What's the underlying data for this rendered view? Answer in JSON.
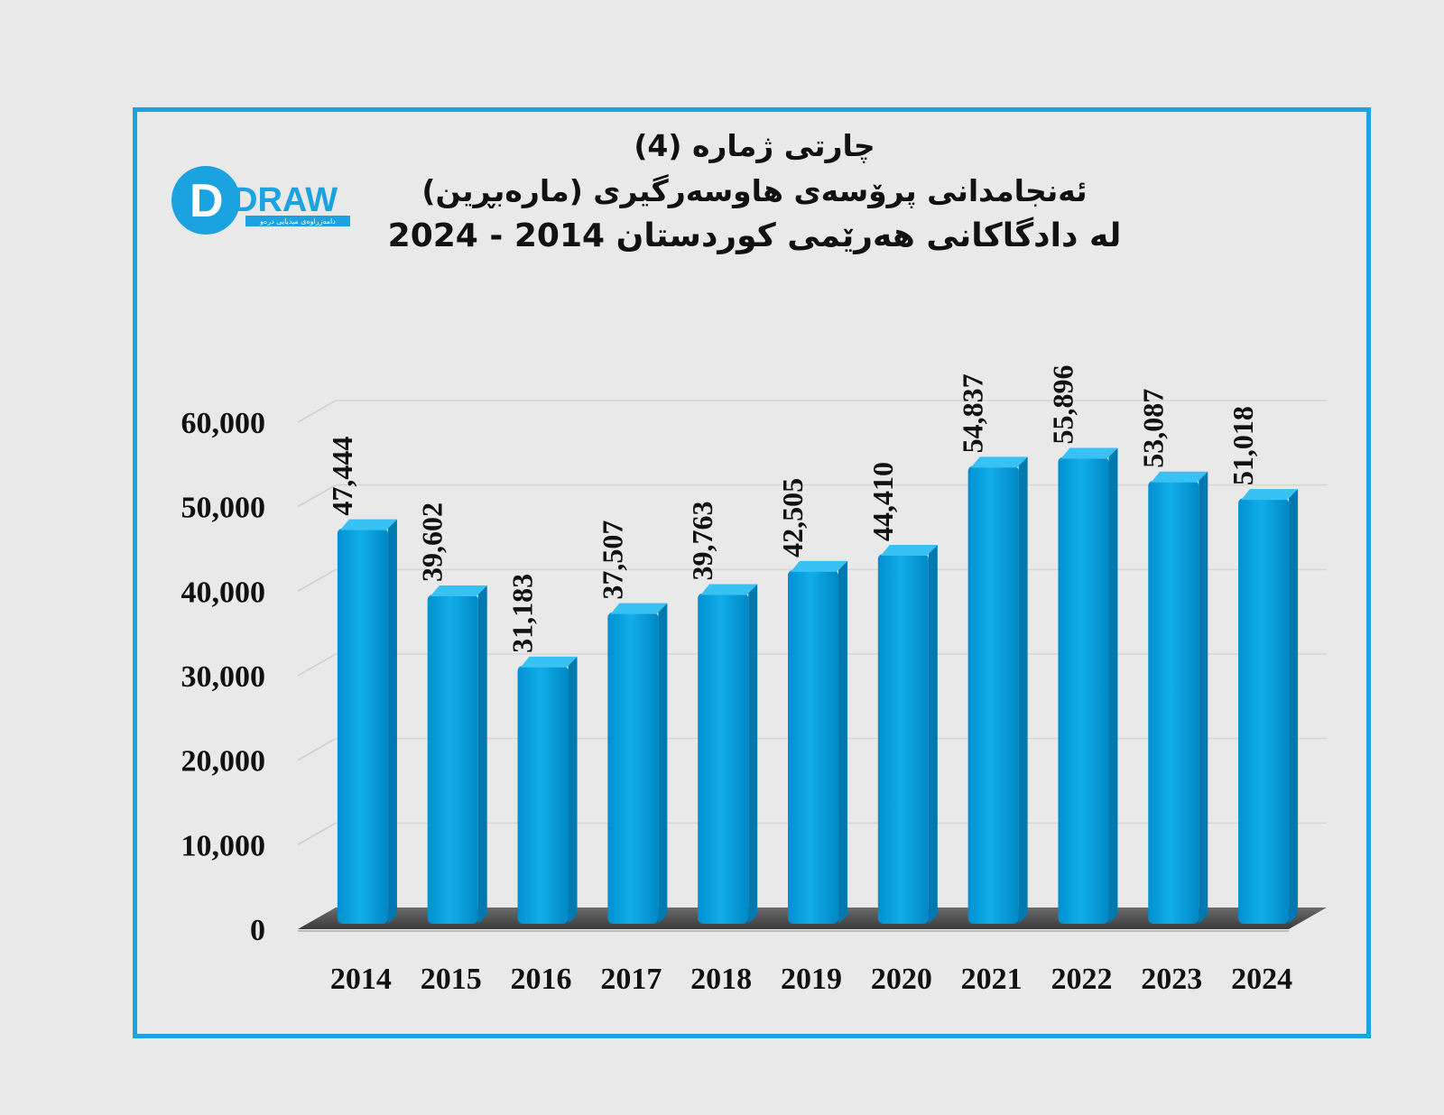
{
  "title": {
    "line1": "چارتی ژمارە (4)",
    "line2": "ئەنجامدانی پرۆسەی هاوسەرگیری (مارەبڕین)",
    "line3": "لە دادگاکانی هەرێمی کوردستان 2014 - 2024"
  },
  "logo": {
    "text": "DRAW",
    "tagline": "دامەزراوەی میدیایی درەو",
    "color": "#1aa3e0"
  },
  "colors": {
    "bar": "#00a3e4",
    "bar_top": "#38c2f3",
    "bar_side": "#0078b0",
    "frame": "#1aa3e0"
  },
  "chart_data": {
    "type": "bar",
    "categories": [
      "2014",
      "2015",
      "2016",
      "2017",
      "2018",
      "2019",
      "2020",
      "2021",
      "2022",
      "2023",
      "2024"
    ],
    "values": [
      47444,
      39602,
      31183,
      37507,
      39763,
      42505,
      44410,
      54837,
      55896,
      53087,
      51018
    ],
    "data_labels": [
      "47,444",
      "39,602",
      "31,183",
      "37,507",
      "39,763",
      "42,505",
      "44,410",
      "54,837",
      "55,896",
      "53,087",
      "51,018"
    ],
    "y_ticks": [
      "0",
      "10,000",
      "20,000",
      "30,000",
      "40,000",
      "50,000",
      "60,000"
    ],
    "ylim": [
      0,
      60000
    ],
    "grid": true,
    "style": "3d"
  }
}
